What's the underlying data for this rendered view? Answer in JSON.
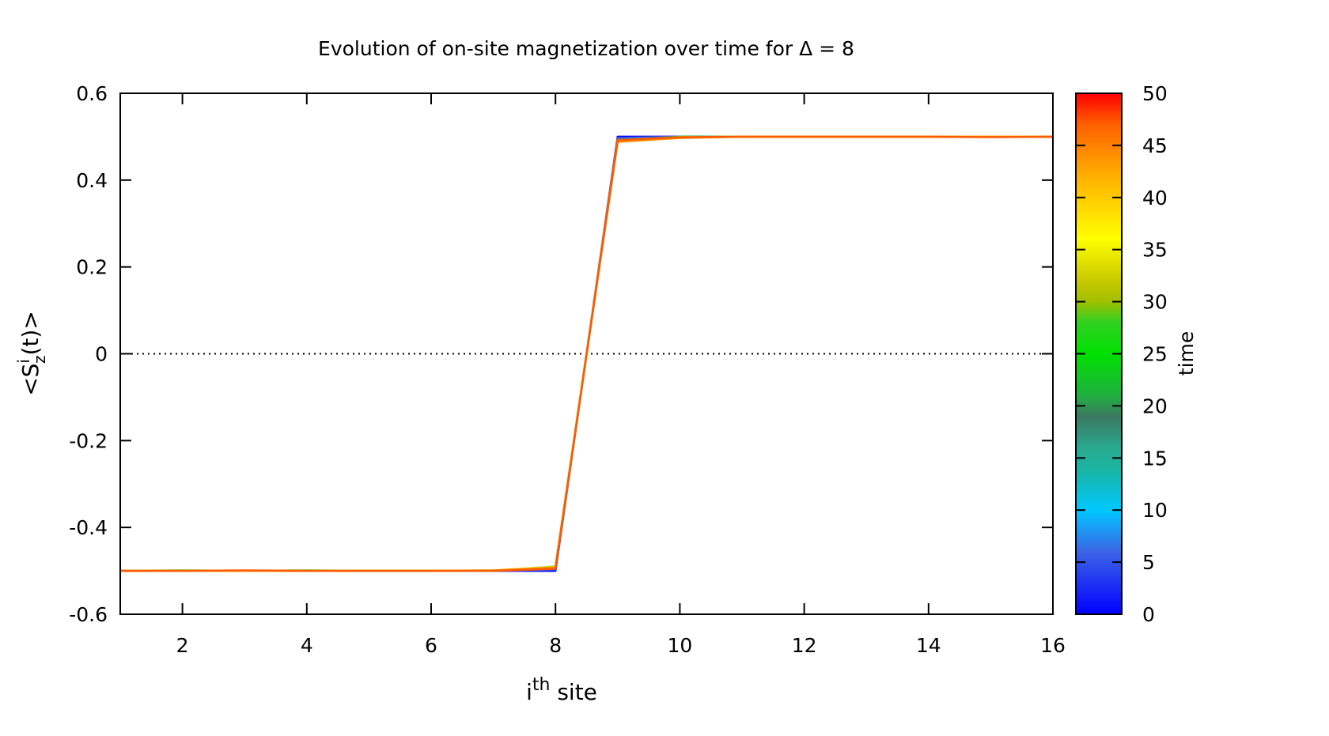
{
  "chart_data": {
    "type": "line",
    "title": "Evolution of on-site magnetization over time for Δ = 8",
    "xlabel": {
      "base": "i",
      "sup": "th",
      "rest": " site"
    },
    "ylabel": {
      "lead": "<S",
      "sub": "z",
      "sup": "i",
      "tail": "(t)>"
    },
    "xlim": [
      1,
      16
    ],
    "ylim": [
      -0.6,
      0.6
    ],
    "xticks": [
      "2",
      "4",
      "6",
      "8",
      "10",
      "12",
      "14",
      "16"
    ],
    "xtick_values": [
      2,
      4,
      6,
      8,
      10,
      12,
      14,
      16
    ],
    "yticks": [
      "0.6",
      "0.4",
      "0.2",
      "0",
      "-0.2",
      "-0.4",
      "-0.6"
    ],
    "ytick_values": [
      0.6,
      0.4,
      0.2,
      0,
      -0.2,
      -0.4,
      -0.6
    ],
    "zero_line": {
      "y": 0,
      "style": "dotted"
    },
    "grid": false,
    "x": [
      1,
      2,
      3,
      4,
      5,
      6,
      7,
      8,
      9,
      10,
      11,
      12,
      13,
      14,
      15,
      16
    ],
    "series": [
      {
        "time": 0,
        "color": "#0000ff",
        "values": [
          -0.5,
          -0.5,
          -0.5,
          -0.5,
          -0.5,
          -0.5,
          -0.5,
          -0.5,
          0.5,
          0.5,
          0.5,
          0.5,
          0.5,
          0.5,
          0.5,
          0.5
        ]
      },
      {
        "time": 5,
        "color": "#3c5adc",
        "values": [
          -0.5,
          -0.5,
          -0.5,
          -0.5,
          -0.5,
          -0.5,
          -0.5,
          -0.497,
          0.497,
          0.5,
          0.5,
          0.5,
          0.5,
          0.5,
          0.5,
          0.5
        ]
      },
      {
        "time": 15,
        "color": "#1ab4a0",
        "values": [
          -0.5,
          -0.5,
          -0.5,
          -0.5,
          -0.5,
          -0.5,
          -0.499,
          -0.493,
          0.493,
          0.499,
          0.5,
          0.5,
          0.5,
          0.5,
          0.5,
          0.5
        ]
      },
      {
        "time": 25,
        "color": "#10d010",
        "values": [
          -0.5,
          -0.499,
          -0.5,
          -0.499,
          -0.5,
          -0.5,
          -0.5,
          -0.49,
          0.49,
          0.5,
          0.5,
          0.5,
          0.5,
          0.5,
          0.5,
          0.5
        ]
      },
      {
        "time": 35,
        "color": "#ffff00",
        "values": [
          -0.5,
          -0.5,
          -0.5,
          -0.5,
          -0.5,
          -0.5,
          -0.499,
          -0.491,
          0.49,
          0.499,
          0.5,
          0.5,
          0.5,
          0.5,
          0.5,
          0.5
        ]
      },
      {
        "time": 45,
        "color": "#ff9000",
        "values": [
          -0.5,
          -0.5,
          -0.5,
          -0.5,
          -0.5,
          -0.5,
          -0.499,
          -0.492,
          0.488,
          0.497,
          0.5,
          0.5,
          0.5,
          0.5,
          0.5,
          0.5
        ]
      },
      {
        "time": 50,
        "color": "#ff5a00",
        "values": [
          -0.5,
          -0.5,
          -0.499,
          -0.5,
          -0.5,
          -0.5,
          -0.5,
          -0.495,
          0.492,
          0.499,
          0.5,
          0.5,
          0.5,
          0.5,
          0.499,
          0.5
        ]
      }
    ],
    "colorbar": {
      "label": "time",
      "range": [
        0,
        50
      ],
      "ticks": [
        "50",
        "45",
        "40",
        "35",
        "30",
        "25",
        "20",
        "15",
        "10",
        "5",
        "0"
      ],
      "tick_values": [
        50,
        45,
        40,
        35,
        30,
        25,
        20,
        15,
        10,
        5,
        0
      ],
      "gradient": [
        {
          "at": 0,
          "color": "#0000ff"
        },
        {
          "at": 6,
          "color": "#3c64e6"
        },
        {
          "at": 10,
          "color": "#00c8ff"
        },
        {
          "at": 14,
          "color": "#1ab4a0"
        },
        {
          "at": 16,
          "color": "#2aa890"
        },
        {
          "at": 19,
          "color": "#3c7860"
        },
        {
          "at": 21,
          "color": "#20b040"
        },
        {
          "at": 25,
          "color": "#00e000"
        },
        {
          "at": 28,
          "color": "#30d020"
        },
        {
          "at": 30,
          "color": "#a0c000"
        },
        {
          "at": 32,
          "color": "#c8c800"
        },
        {
          "at": 36,
          "color": "#ffff00"
        },
        {
          "at": 42,
          "color": "#ffb000"
        },
        {
          "at": 47,
          "color": "#ff6000"
        },
        {
          "at": 50,
          "color": "#ff0000"
        }
      ]
    }
  }
}
